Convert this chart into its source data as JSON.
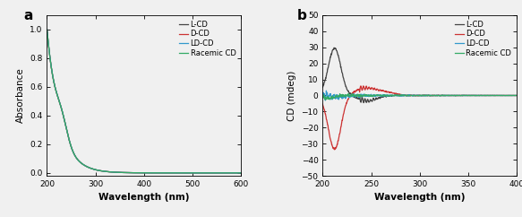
{
  "panel_a": {
    "title": "a",
    "xlabel": "Wavelength (nm)",
    "ylabel": "Absorbance",
    "xlim": [
      200,
      600
    ],
    "ylim": [
      -0.02,
      1.1
    ],
    "yticks": [
      0.0,
      0.2,
      0.4,
      0.6,
      0.8,
      1.0
    ],
    "xticks": [
      200,
      300,
      400,
      500,
      600
    ],
    "legend": [
      "L-CD",
      "D-CD",
      "LD-CD",
      "Racemic CD"
    ],
    "colors": [
      "#444444",
      "#cc3333",
      "#3399cc",
      "#33aa66"
    ]
  },
  "panel_b": {
    "title": "b",
    "xlabel": "Wavelength (nm)",
    "ylabel": "CD (mdeg)",
    "xlim": [
      200,
      400
    ],
    "ylim": [
      -50,
      50
    ],
    "yticks": [
      -50,
      -40,
      -30,
      -20,
      -10,
      0,
      10,
      20,
      30,
      40,
      50
    ],
    "xticks": [
      200,
      250,
      300,
      350,
      400
    ],
    "legend": [
      "L-CD",
      "D-CD",
      "LD-CD",
      "Racemic CD"
    ],
    "colors": [
      "#444444",
      "#cc3333",
      "#3399cc",
      "#33aa66"
    ]
  },
  "fig_facecolor": "#f0f0f0",
  "axes_facecolor": "#f0f0f0"
}
